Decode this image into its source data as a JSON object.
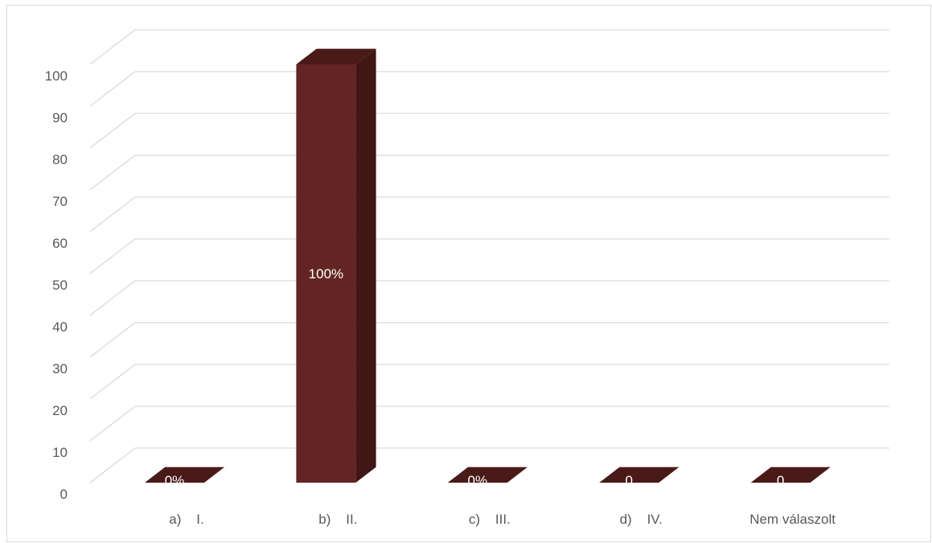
{
  "chart_data": {
    "type": "bar",
    "style": "3d-column",
    "categories": [
      "a)    I.",
      "b)    II.",
      "c)    III.",
      "d)    IV.",
      "Nem válaszolt"
    ],
    "values": [
      0,
      100,
      0,
      0,
      0
    ],
    "data_labels": [
      "0%",
      "100%",
      "0%",
      "0",
      "0"
    ],
    "title": "",
    "xlabel": "",
    "ylabel": "",
    "ylim": [
      0,
      100
    ],
    "yticks": [
      0,
      10,
      20,
      30,
      40,
      50,
      60,
      70,
      80,
      90,
      100
    ],
    "grid": true,
    "legend": "none"
  },
  "colors": {
    "bar_front": "#632523",
    "bar_side": "#401715",
    "bar_top": "#4a1a18",
    "gridline": "#d9d9d9",
    "text": "#595959",
    "label": "#ffffff"
  }
}
